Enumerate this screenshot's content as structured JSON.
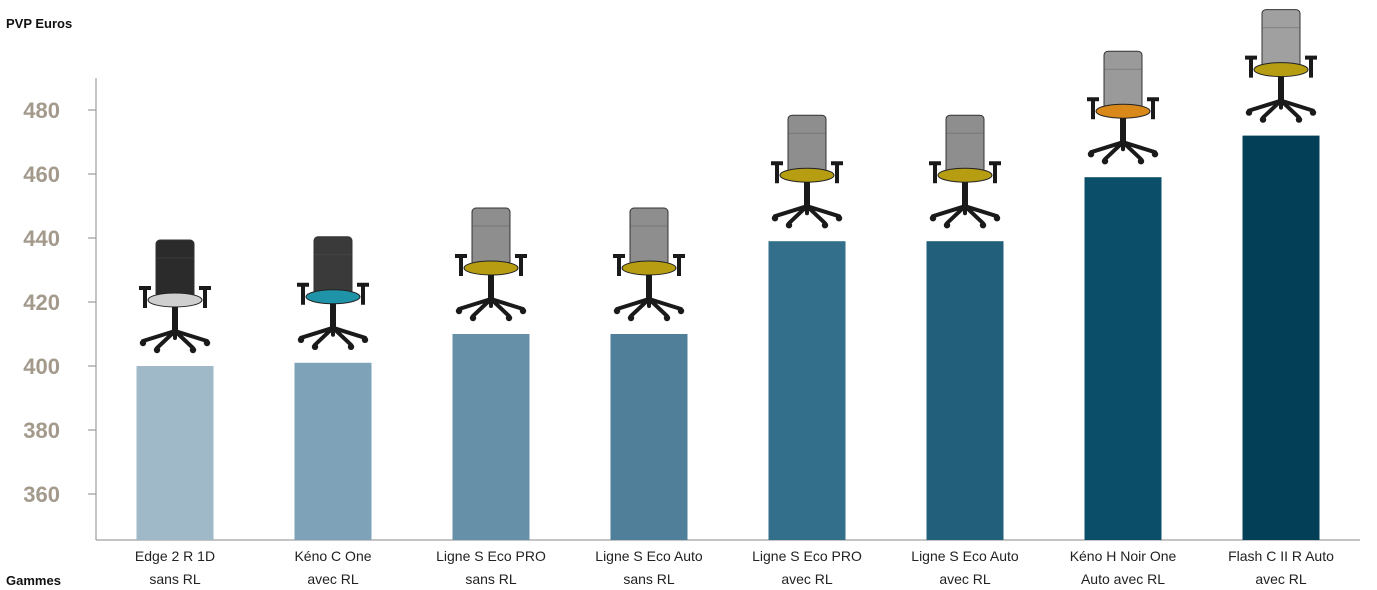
{
  "chart_data": {
    "type": "bar",
    "ylabel": "PVP Euros",
    "xlabel": "Gammes",
    "ylim": [
      345,
      490
    ],
    "yticks": [
      360,
      380,
      400,
      420,
      440,
      460,
      480
    ],
    "grid": false,
    "categories": [
      [
        "Edge 2 R 1D",
        "sans RL"
      ],
      [
        "Kéno C One",
        "avec RL"
      ],
      [
        "Ligne S Eco PRO",
        "sans RL"
      ],
      [
        "Ligne S Eco Auto",
        "sans RL"
      ],
      [
        "Ligne S Eco PRO",
        "avec RL"
      ],
      [
        "Ligne S Eco Auto",
        "avec RL"
      ],
      [
        "Kéno H Noir One",
        "Auto avec RL"
      ],
      [
        "Flash C II R Auto",
        "avec RL"
      ]
    ],
    "values": [
      400,
      401,
      410,
      410,
      439,
      439,
      459,
      472
    ],
    "bar_colors": [
      "#9fb9c9",
      "#7ea2b8",
      "#6590a8",
      "#4f7f99",
      "#336f8b",
      "#215f7a",
      "#0b4e69",
      "#033f57"
    ],
    "chair_icons": [
      {
        "name": "office-chair-black-mesh-icon",
        "seat_color": "#cfcfcf",
        "back_color": "#2b2b2b"
      },
      {
        "name": "office-chair-blue-seat-icon",
        "seat_color": "#1f93a8",
        "back_color": "#3a3a3a"
      },
      {
        "name": "office-chair-yellow-seat-icon",
        "seat_color": "#b69d12",
        "back_color": "#8e8e8e"
      },
      {
        "name": "office-chair-yellow-seat-icon",
        "seat_color": "#b69d12",
        "back_color": "#8e8e8e"
      },
      {
        "name": "office-chair-yellow-seat-icon",
        "seat_color": "#b69d12",
        "back_color": "#8e8e8e"
      },
      {
        "name": "office-chair-yellow-seat-icon",
        "seat_color": "#b69d12",
        "back_color": "#8e8e8e"
      },
      {
        "name": "office-chair-orange-seat-icon",
        "seat_color": "#d9891a",
        "back_color": "#9a9a9a"
      },
      {
        "name": "office-chair-yellow-seat-icon",
        "seat_color": "#b69d12",
        "back_color": "#a0a0a0"
      }
    ]
  }
}
